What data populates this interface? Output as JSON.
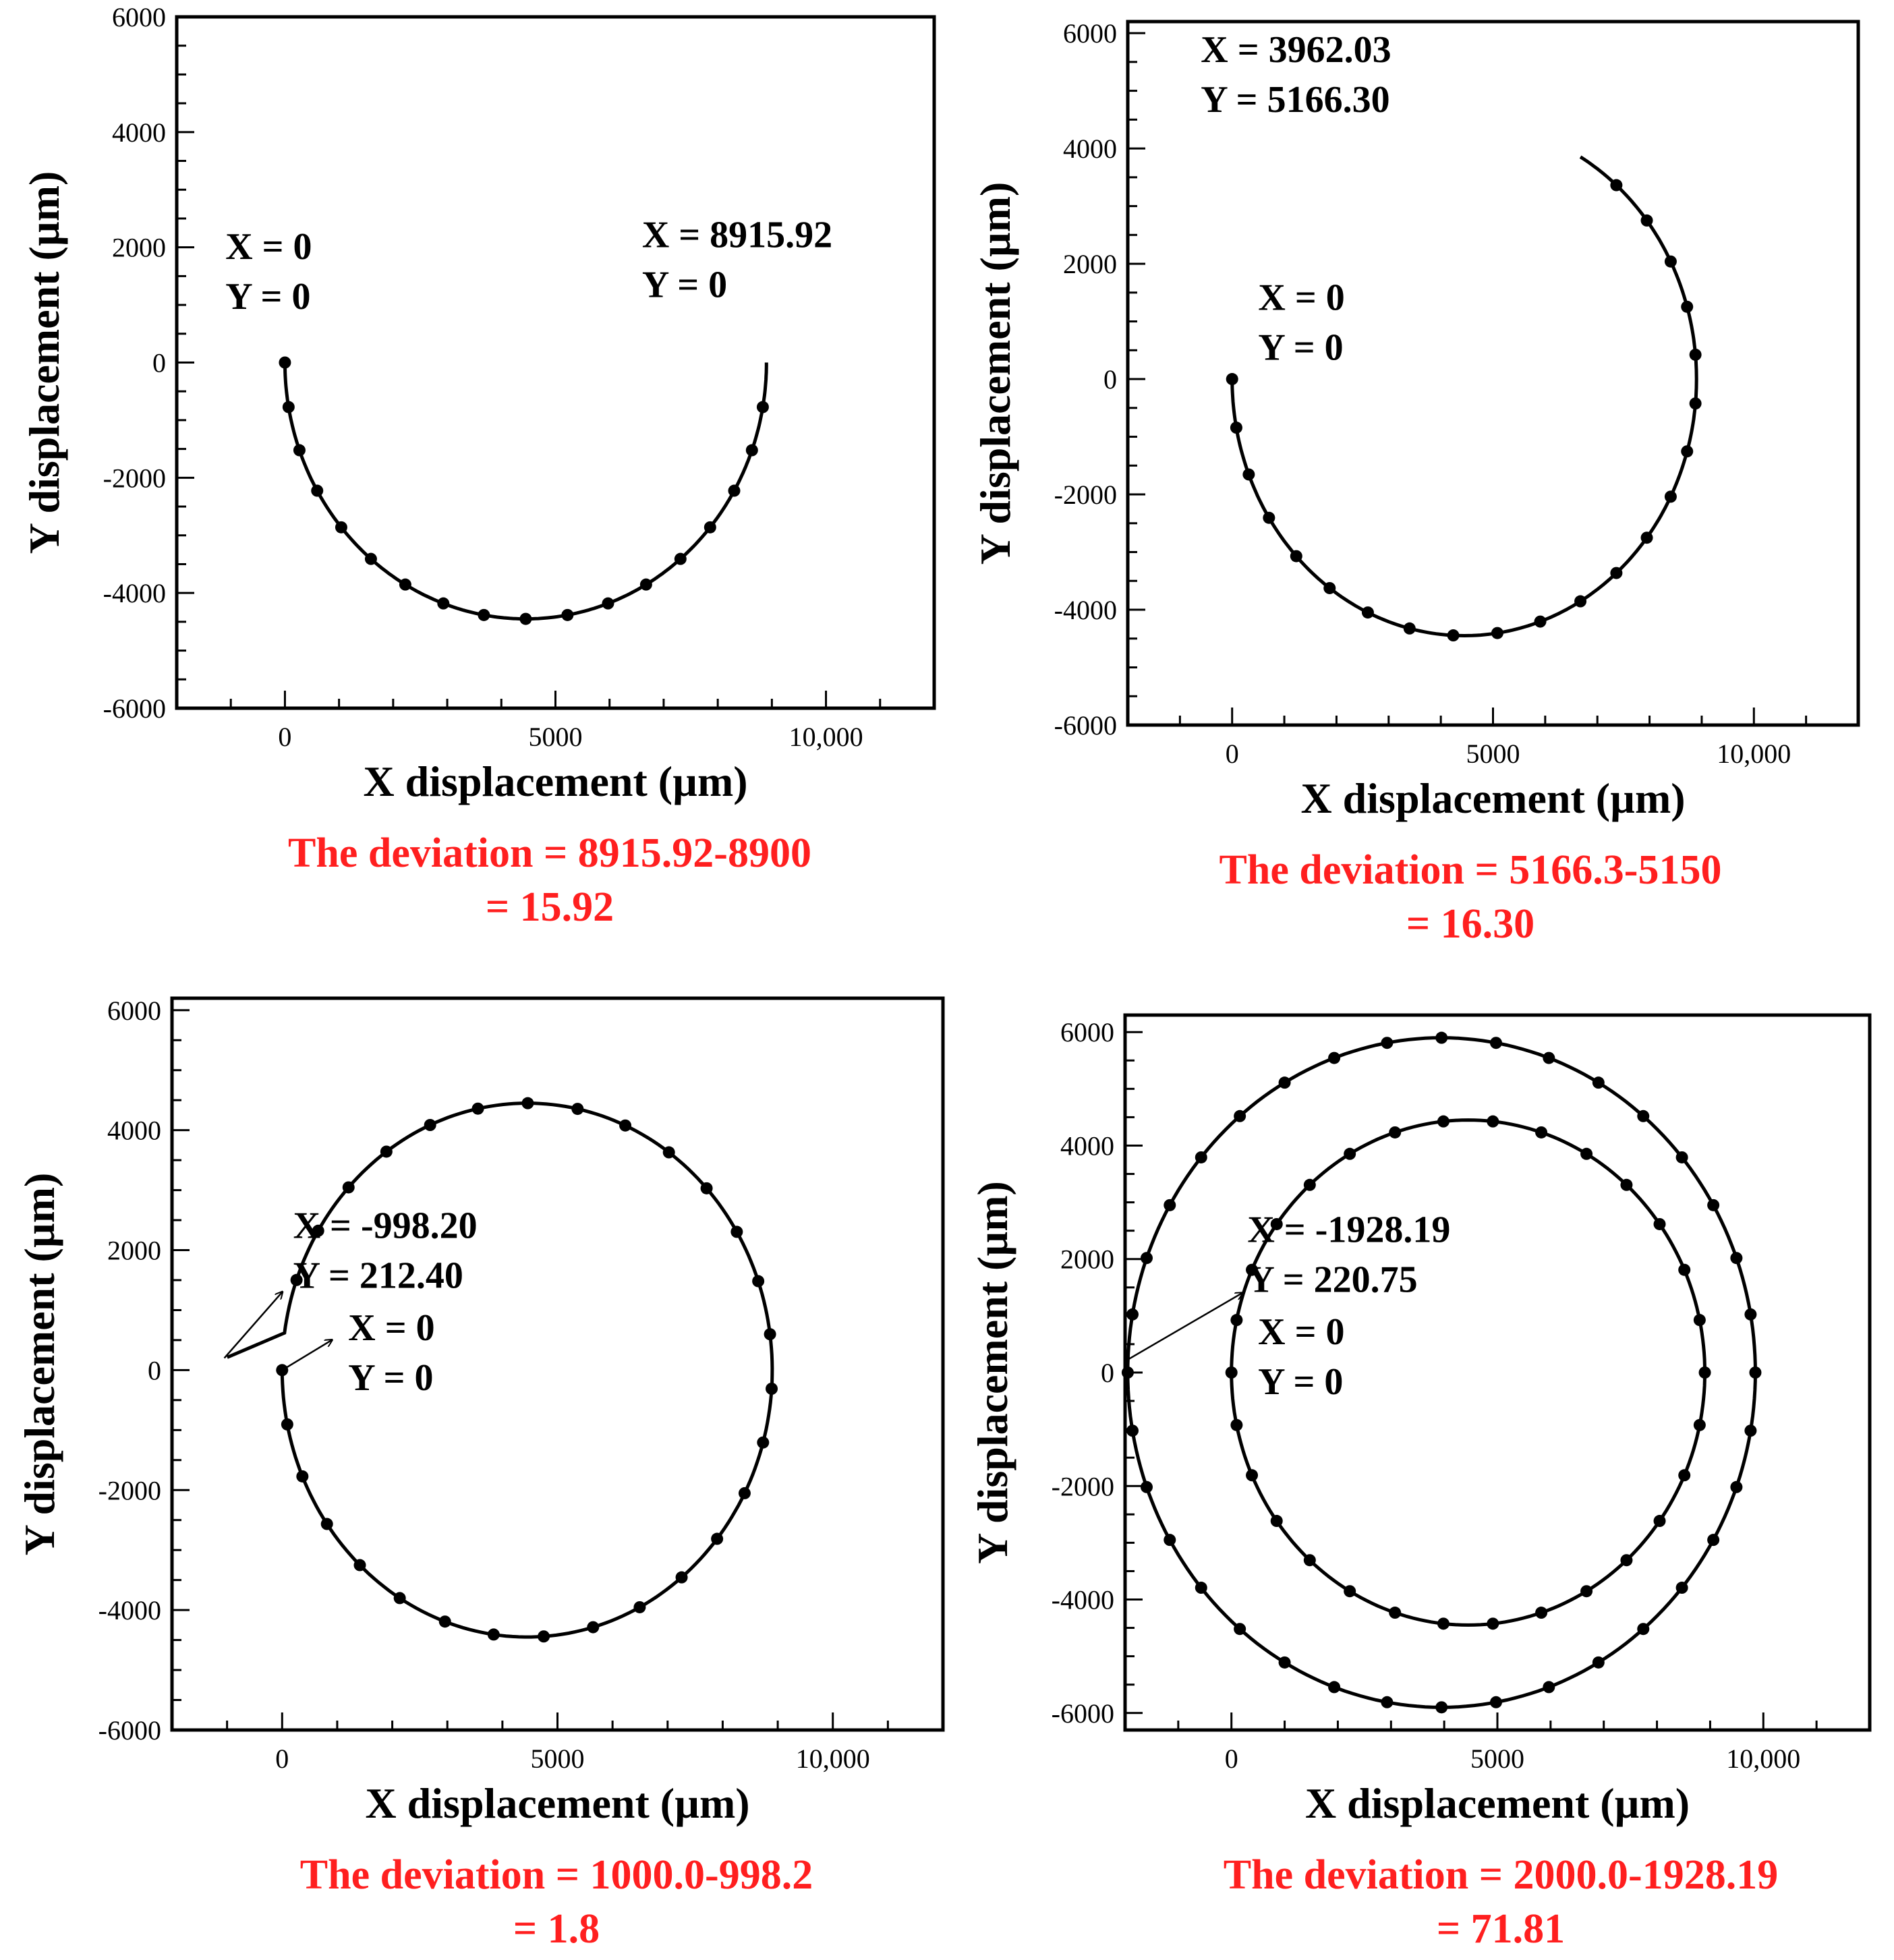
{
  "colors": {
    "deviation": "#ff1f1f",
    "axis": "#000000",
    "curve": "#000000"
  },
  "chart_data": [
    {
      "type": "line",
      "xlabel": "X displacement (µm)",
      "ylabel": "Y displacement (µm)",
      "xlim": [
        -2000,
        12000
      ],
      "ylim": [
        -6000,
        6000
      ],
      "x_ticks": [
        0,
        5000,
        10000
      ],
      "x_tick_labels": [
        "0",
        "5000",
        "10,000"
      ],
      "y_ticks": [
        6000,
        4000,
        2000,
        0,
        -2000,
        -4000,
        -6000
      ],
      "y_tick_labels": [
        "6000",
        "4000",
        "2000",
        "0",
        "-2000",
        "-4000",
        "-6000"
      ],
      "series": [
        {
          "name": "trajectory",
          "center": [
            4450,
            0
          ],
          "radius": 4450,
          "start_angle_deg": 180,
          "sweep_deg": 180,
          "markers": 18
        }
      ],
      "annotations": [
        {
          "lines": [
            "X = 0",
            "Y = 0"
          ],
          "at": [
            -1100,
            1800
          ],
          "arrow": false
        },
        {
          "lines": [
            "X = 8915.92",
            "Y = 0"
          ],
          "at": [
            6600,
            2000
          ],
          "arrow": false
        }
      ],
      "deviation": [
        "The deviation = 8915.92-8900",
        "= 15.92"
      ]
    },
    {
      "type": "line",
      "xlabel": "X displacement (µm)",
      "ylabel": "Y displacement (µm)",
      "xlim": [
        -2000,
        12000
      ],
      "ylim": [
        -6000,
        6200
      ],
      "x_ticks": [
        0,
        5000,
        10000
      ],
      "x_tick_labels": [
        "0",
        "5000",
        "10,000"
      ],
      "y_ticks": [
        6000,
        4000,
        2000,
        0,
        -2000,
        -4000,
        -6000
      ],
      "y_tick_labels": [
        "6000",
        "4000",
        "2000",
        "0",
        "-2000",
        "-4000",
        "-6000"
      ],
      "series": [
        {
          "name": "trajectory",
          "center": [
            4450,
            0
          ],
          "radius": 4450,
          "start_angle_deg": 180,
          "sweep_deg": 240,
          "markers": 22
        }
      ],
      "annotations": [
        {
          "lines": [
            "X = 3962.03",
            "Y = 5166.30"
          ],
          "at": [
            -600,
            5500
          ],
          "arrow": false
        },
        {
          "lines": [
            "X = 0",
            "Y = 0"
          ],
          "at": [
            500,
            1200
          ],
          "arrow": false
        }
      ],
      "deviation": [
        "The deviation = 5166.3-5150",
        "= 16.30"
      ]
    },
    {
      "type": "line",
      "xlabel": "X displacement (µm)",
      "ylabel": "Y displacement (µm)",
      "xlim": [
        -2000,
        12000
      ],
      "ylim": [
        -6000,
        6200
      ],
      "x_ticks": [
        0,
        5000,
        10000
      ],
      "x_tick_labels": [
        "0",
        "5000",
        "10,000"
      ],
      "y_ticks": [
        6000,
        4000,
        2000,
        0,
        -2000,
        -4000,
        -6000
      ],
      "y_tick_labels": [
        "6000",
        "4000",
        "2000",
        "0",
        "-2000",
        "-4000",
        "-6000"
      ],
      "series": [
        {
          "name": "trajectory",
          "center": [
            4450,
            0
          ],
          "radius": 4450,
          "start_angle_deg": 180,
          "sweep_deg": 352,
          "markers": 30,
          "end": [
            -998.2,
            212.4
          ]
        }
      ],
      "annotations": [
        {
          "lines": [
            "X = -998.20",
            "Y = 212.40"
          ],
          "at": [
            200,
            2200
          ],
          "arrow": true,
          "arrow_from": [
            -1050,
            200
          ],
          "arrow_to": [
            0,
            1300
          ]
        },
        {
          "lines": [
            "X = 0",
            "Y = 0"
          ],
          "at": [
            1200,
            500
          ],
          "arrow": true,
          "arrow_from": [
            0,
            0
          ],
          "arrow_to": [
            900,
            500
          ]
        }
      ],
      "deviation": [
        "The deviation = 1000.0-998.2",
        "= 1.8"
      ]
    },
    {
      "type": "line",
      "xlabel": "X displacement (µm)",
      "ylabel": "Y displacement (µm)",
      "xlim": [
        -2000,
        12000
      ],
      "ylim": [
        -6300,
        6300
      ],
      "x_ticks": [
        0,
        5000,
        10000
      ],
      "x_tick_labels": [
        "0",
        "5000",
        "10,000"
      ],
      "y_ticks": [
        6000,
        4000,
        2000,
        0,
        -2000,
        -4000,
        -6000
      ],
      "y_tick_labels": [
        "6000",
        "4000",
        "2000",
        "0",
        "-2000",
        "-4000",
        "-6000"
      ],
      "series": [
        {
          "name": "inner loop",
          "center": [
            4450,
            0
          ],
          "radius": 4450,
          "start_angle_deg": 180,
          "sweep_deg": 360,
          "markers": 30
        },
        {
          "name": "outer loop",
          "center": [
            3950,
            0
          ],
          "radius": 5900,
          "start_angle_deg": 180,
          "sweep_deg": 360,
          "markers": 36
        }
      ],
      "annotations": [
        {
          "lines": [
            "X = -1928.19",
            "Y = 220.75"
          ],
          "at": [
            300,
            2300
          ],
          "arrow": true,
          "arrow_from": [
            -2000,
            200
          ],
          "arrow_to": [
            200,
            1400
          ]
        },
        {
          "lines": [
            "X = 0",
            "Y = 0"
          ],
          "at": [
            500,
            500
          ],
          "arrow": false
        }
      ],
      "deviation": [
        "The deviation = 2000.0-1928.19",
        "= 71.81"
      ]
    }
  ]
}
